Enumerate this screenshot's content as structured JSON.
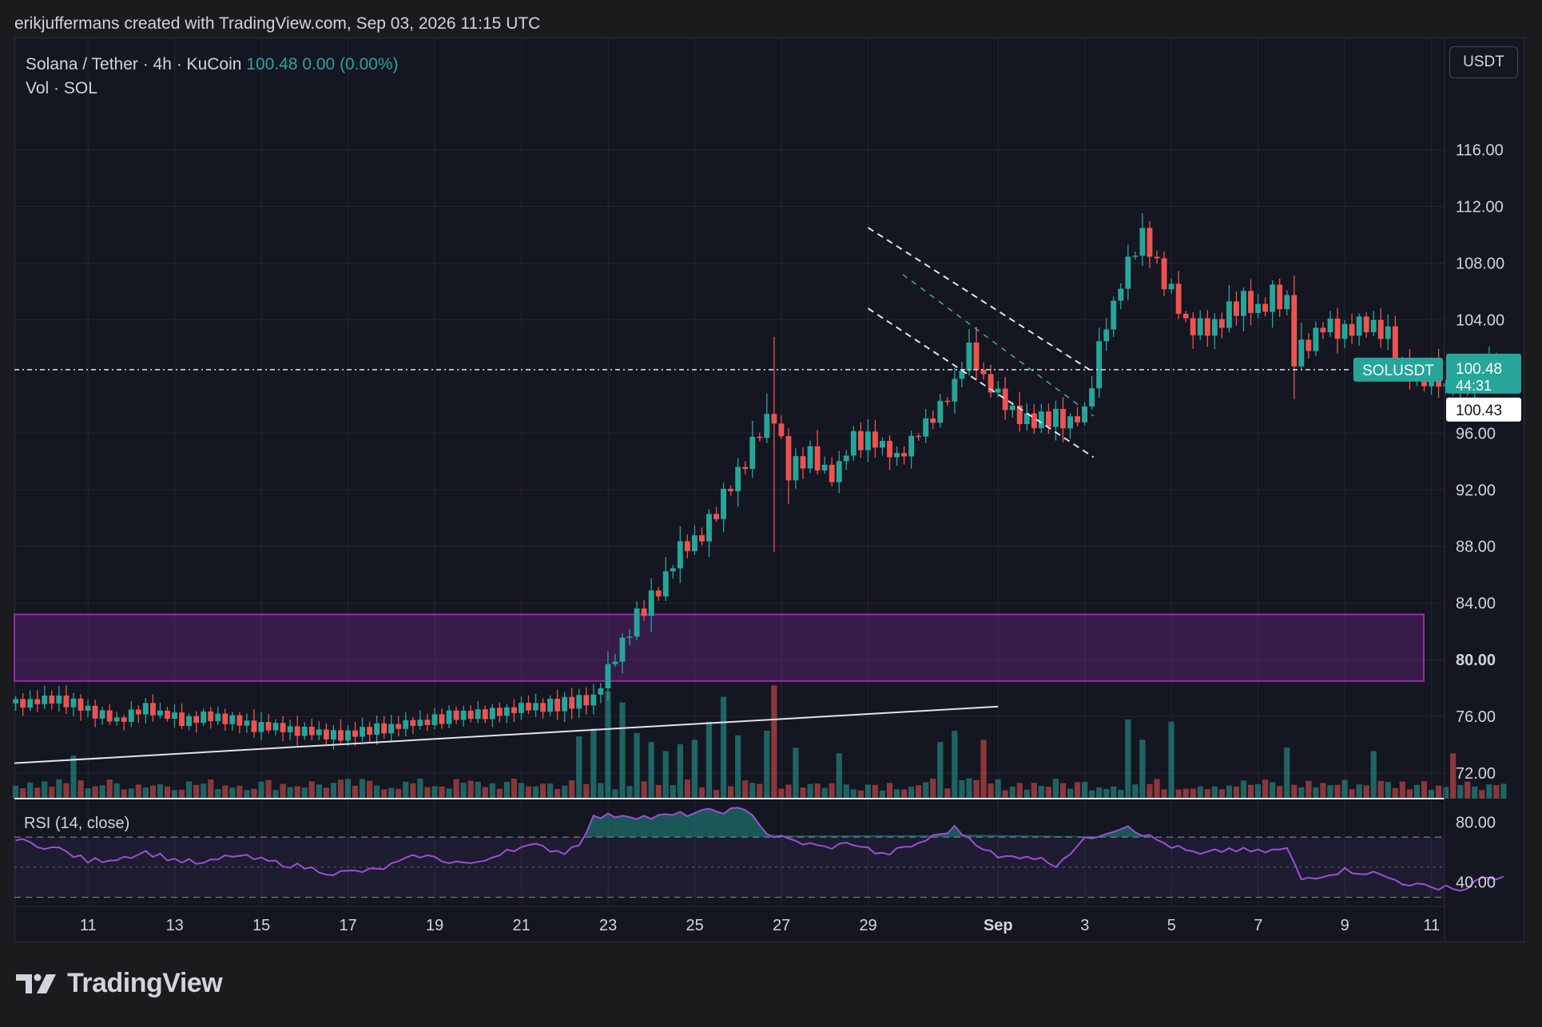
{
  "caption": "erikjuffermans created with TradingView.com, Sep 03, 2026 11:15 UTC",
  "legend": {
    "symbol": "Solana / Tether · 4h · KuCoin",
    "last": "100.48",
    "change": "0.00 (0.00%)",
    "volume_label": "Vol · SOL"
  },
  "unit_button": "USDT",
  "rsi_label": "RSI (14, close)",
  "brand": "TradingView",
  "colors": {
    "up": "#26a69a",
    "down": "#ef5350",
    "zone": "#9c27b0",
    "rsi": "#9c4fd6",
    "background": "#141621"
  },
  "chart_data": {
    "type": "candlestick",
    "symbol_tag": "SOLUSDT",
    "price_tag": "100.48",
    "countdown": "44:31",
    "price_line_value": 100.48,
    "ref_tag": "100.43",
    "ylim": [
      70.2,
      121.5
    ],
    "y_ticks": [
      "116.00",
      "112.00",
      "108.00",
      "104.00",
      "96.00",
      "92.00",
      "88.00",
      "84.00",
      "80.00",
      "76.00",
      "72.00"
    ],
    "y_tick_values": [
      116,
      112,
      108,
      104,
      96,
      92,
      88,
      84,
      80,
      76,
      72
    ],
    "x_ticks": [
      "11",
      "13",
      "15",
      "17",
      "19",
      "21",
      "23",
      "25",
      "27",
      "29",
      "Sep",
      "3",
      "5",
      "7",
      "9",
      "11"
    ],
    "x_tick_days": [
      10,
      12,
      14,
      16,
      18,
      20,
      22,
      24,
      26,
      28,
      31,
      33,
      35,
      37,
      39,
      41
    ],
    "x_range_days": [
      8.3,
      41.3
    ],
    "candles_per_day": 6,
    "first_candle_day": 8.33,
    "anchors": [
      [
        0,
        76.9
      ],
      [
        6,
        77.3
      ],
      [
        10,
        76.5
      ],
      [
        14,
        75.6
      ],
      [
        18,
        76.6
      ],
      [
        22,
        75.8
      ],
      [
        28,
        75.9
      ],
      [
        34,
        75.3
      ],
      [
        40,
        75.0
      ],
      [
        46,
        74.7
      ],
      [
        50,
        75.1
      ],
      [
        56,
        75.6
      ],
      [
        62,
        76.1
      ],
      [
        68,
        76.4
      ],
      [
        72,
        76.7
      ],
      [
        76,
        76.9
      ],
      [
        78,
        77.1
      ],
      [
        80,
        77.2
      ],
      [
        83,
        80.3
      ],
      [
        86,
        83.0
      ],
      [
        88,
        84.5
      ],
      [
        90,
        86.0
      ],
      [
        92,
        87.8
      ],
      [
        94,
        88.5
      ],
      [
        96,
        89.8
      ],
      [
        98,
        91.5
      ],
      [
        100,
        93.3
      ],
      [
        102,
        95.0
      ],
      [
        104,
        97.1
      ],
      [
        105,
        97.0
      ],
      [
        107,
        93.3
      ],
      [
        110,
        94.7
      ],
      [
        113,
        92.8
      ],
      [
        116,
        95.6
      ],
      [
        119,
        95.3
      ],
      [
        122,
        94.2
      ],
      [
        125,
        96.2
      ],
      [
        128,
        97.6
      ],
      [
        130,
        99.5
      ],
      [
        132,
        101.8
      ],
      [
        134,
        99.7
      ],
      [
        137,
        98.1
      ],
      [
        140,
        96.9
      ],
      [
        143,
        97.2
      ],
      [
        146,
        96.8
      ],
      [
        148,
        97.6
      ],
      [
        150,
        102.2
      ],
      [
        152,
        105.0
      ],
      [
        154,
        108.2
      ],
      [
        156,
        110.0
      ],
      [
        158,
        107.8
      ],
      [
        160,
        106.0
      ],
      [
        162,
        103.8
      ],
      [
        164,
        103.5
      ],
      [
        166,
        103.3
      ],
      [
        168,
        104.8
      ],
      [
        170,
        105.3
      ],
      [
        172,
        104.6
      ],
      [
        174,
        105.8
      ],
      [
        176,
        105.2
      ],
      [
        177,
        101.5
      ],
      [
        179,
        102.5
      ],
      [
        181,
        103.4
      ],
      [
        184,
        103.1
      ],
      [
        187,
        103.8
      ],
      [
        190,
        102.8
      ],
      [
        192,
        100.8
      ],
      [
        194,
        99.9
      ],
      [
        196,
        100.3
      ],
      [
        198,
        98.9
      ],
      [
        200,
        99.5
      ],
      [
        202,
        100.1
      ],
      [
        204,
        100.5
      ],
      [
        206,
        100.48
      ]
    ],
    "volume": {
      "base_level": 12,
      "spikes": [
        [
          8,
          38
        ],
        [
          78,
          55
        ],
        [
          80,
          62
        ],
        [
          82,
          95
        ],
        [
          84,
          85
        ],
        [
          86,
          58
        ],
        [
          88,
          50
        ],
        [
          90,
          42
        ],
        [
          92,
          48
        ],
        [
          94,
          52
        ],
        [
          96,
          68
        ],
        [
          98,
          90
        ],
        [
          100,
          56
        ],
        [
          104,
          60
        ],
        [
          105,
          100
        ],
        [
          108,
          45
        ],
        [
          114,
          40
        ],
        [
          128,
          50
        ],
        [
          130,
          60
        ],
        [
          134,
          52
        ],
        [
          154,
          70
        ],
        [
          156,
          52
        ],
        [
          160,
          68
        ],
        [
          176,
          45
        ],
        [
          188,
          42
        ],
        [
          199,
          40
        ]
      ]
    },
    "rsi": {
      "ylim": [
        25,
        94
      ],
      "ticks": [
        "80.00",
        "40.00"
      ],
      "tick_values": [
        80,
        40
      ],
      "band_levels": [
        70,
        30
      ],
      "mid_level": 50,
      "anchors": [
        [
          0,
          68
        ],
        [
          6,
          62
        ],
        [
          10,
          54
        ],
        [
          14,
          56
        ],
        [
          18,
          60
        ],
        [
          22,
          55
        ],
        [
          26,
          52
        ],
        [
          30,
          58
        ],
        [
          36,
          53
        ],
        [
          40,
          50
        ],
        [
          44,
          46
        ],
        [
          50,
          48
        ],
        [
          56,
          58
        ],
        [
          60,
          54
        ],
        [
          64,
          52
        ],
        [
          68,
          62
        ],
        [
          72,
          64
        ],
        [
          76,
          60
        ],
        [
          78,
          66
        ],
        [
          80,
          83
        ],
        [
          84,
          85
        ],
        [
          88,
          83
        ],
        [
          92,
          85
        ],
        [
          96,
          87
        ],
        [
          100,
          88
        ],
        [
          102,
          86
        ],
        [
          104,
          72
        ],
        [
          108,
          67
        ],
        [
          112,
          63
        ],
        [
          116,
          66
        ],
        [
          120,
          58
        ],
        [
          124,
          64
        ],
        [
          128,
          72
        ],
        [
          130,
          76
        ],
        [
          134,
          63
        ],
        [
          136,
          56
        ],
        [
          140,
          58
        ],
        [
          144,
          52
        ],
        [
          148,
          68
        ],
        [
          150,
          72
        ],
        [
          154,
          78
        ],
        [
          156,
          72
        ],
        [
          160,
          64
        ],
        [
          164,
          58
        ],
        [
          168,
          62
        ],
        [
          172,
          60
        ],
        [
          176,
          62
        ],
        [
          178,
          42
        ],
        [
          184,
          48
        ],
        [
          188,
          46
        ],
        [
          192,
          40
        ],
        [
          196,
          36
        ],
        [
          198,
          38
        ],
        [
          200,
          34
        ],
        [
          202,
          40
        ],
        [
          204,
          43
        ],
        [
          206,
          44
        ]
      ]
    },
    "zone": {
      "low": 78.5,
      "high": 83.2,
      "start_day": 8.3,
      "end_day": 41.3
    },
    "trendline": {
      "start": [
        8.3,
        72.7
      ],
      "end": [
        31.0,
        76.7
      ]
    },
    "channel_upper": {
      "start": [
        28.0,
        110.5
      ],
      "end": [
        33.2,
        100.3
      ]
    },
    "channel_lower": {
      "start": [
        28.0,
        104.8
      ],
      "end": [
        33.2,
        94.3
      ]
    },
    "channel_mid": {
      "start": [
        28.8,
        107.2
      ],
      "end": [
        33.2,
        97.2
      ]
    }
  }
}
